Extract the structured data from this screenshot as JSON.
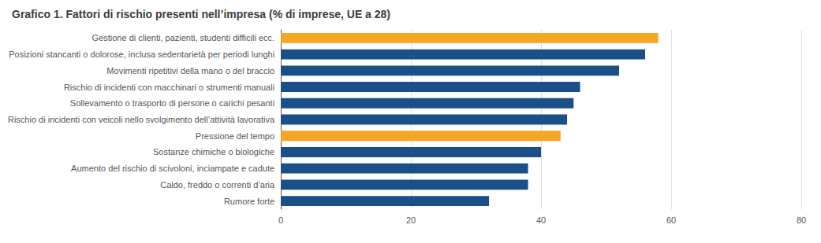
{
  "chart_data": {
    "type": "bar",
    "orientation": "horizontal",
    "title": "Grafico 1. Fattori di rischio presenti nell’impresa (% di imprese, UE a 28)",
    "categories": [
      "Gestione di clienti, pazienti, studenti difficili ecc.",
      "Posizioni stancanti o dolorose, inclusa sedentarietà per periodi lunghi",
      "Movimenti ripetitivi della mano o del braccio",
      "Rischio di incidenti con macchinari o strumenti manuali",
      "Sollevamento o trasporto di persone o carichi pesanti",
      "Rischio di incidenti con veicoli nello svolgimento dell’attività lavorativa",
      "Pressione del tempo",
      "Sostanze chimiche o biologiche",
      "Aumento del rischio di scivoloni, inciampate e cadute",
      "Caldo, freddo o correnti d’aria",
      "Rumore forte"
    ],
    "values": [
      58,
      56,
      52,
      46,
      45,
      44,
      43,
      40,
      38,
      38,
      32
    ],
    "colors": [
      "#F5A623",
      "#1B4F8A",
      "#1B4F8A",
      "#1B4F8A",
      "#1B4F8A",
      "#1B4F8A",
      "#F5A623",
      "#1B4F8A",
      "#1B4F8A",
      "#1B4F8A",
      "#1B4F8A"
    ],
    "xlim": [
      0,
      80
    ],
    "xticks": [
      0,
      20,
      40,
      60,
      80
    ],
    "grid": true
  }
}
